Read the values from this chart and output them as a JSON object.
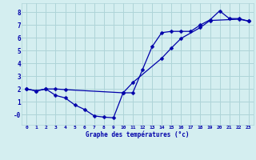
{
  "xlabel": "Graphe des températures (°c)",
  "x_ticks": [
    0,
    1,
    2,
    3,
    4,
    5,
    6,
    7,
    8,
    9,
    10,
    11,
    12,
    13,
    14,
    15,
    16,
    17,
    18,
    19,
    20,
    21,
    22,
    23
  ],
  "xlim": [
    -0.5,
    23.5
  ],
  "ylim": [
    -0.8,
    8.7
  ],
  "y_ticks": [
    0,
    1,
    2,
    3,
    4,
    5,
    6,
    7,
    8
  ],
  "y_tick_labels": [
    "-0",
    "1",
    "2",
    "3",
    "4",
    "5",
    "6",
    "7",
    "8"
  ],
  "bg_color": "#d4eef0",
  "grid_color": "#aed4d8",
  "line_color": "#0000aa",
  "markersize": 2.5,
  "line1_x": [
    0,
    1,
    2,
    3,
    4,
    5,
    6,
    7,
    8,
    9,
    10,
    11,
    12,
    13,
    14,
    15,
    16,
    17,
    18,
    19,
    20,
    21,
    22,
    23
  ],
  "line1_y": [
    2.0,
    1.85,
    2.0,
    1.5,
    1.3,
    0.75,
    0.4,
    -0.1,
    -0.2,
    -0.25,
    1.7,
    1.7,
    3.5,
    5.3,
    6.4,
    6.5,
    6.5,
    6.5,
    7.0,
    7.4,
    8.1,
    7.5,
    7.5,
    7.3
  ],
  "line2_x": [
    0,
    1,
    2,
    3,
    4,
    10,
    11,
    14,
    15,
    16,
    18,
    19,
    22,
    23
  ],
  "line2_y": [
    2.0,
    1.85,
    2.0,
    2.0,
    1.95,
    1.7,
    2.5,
    4.4,
    5.2,
    5.95,
    6.8,
    7.35,
    7.45,
    7.3
  ]
}
